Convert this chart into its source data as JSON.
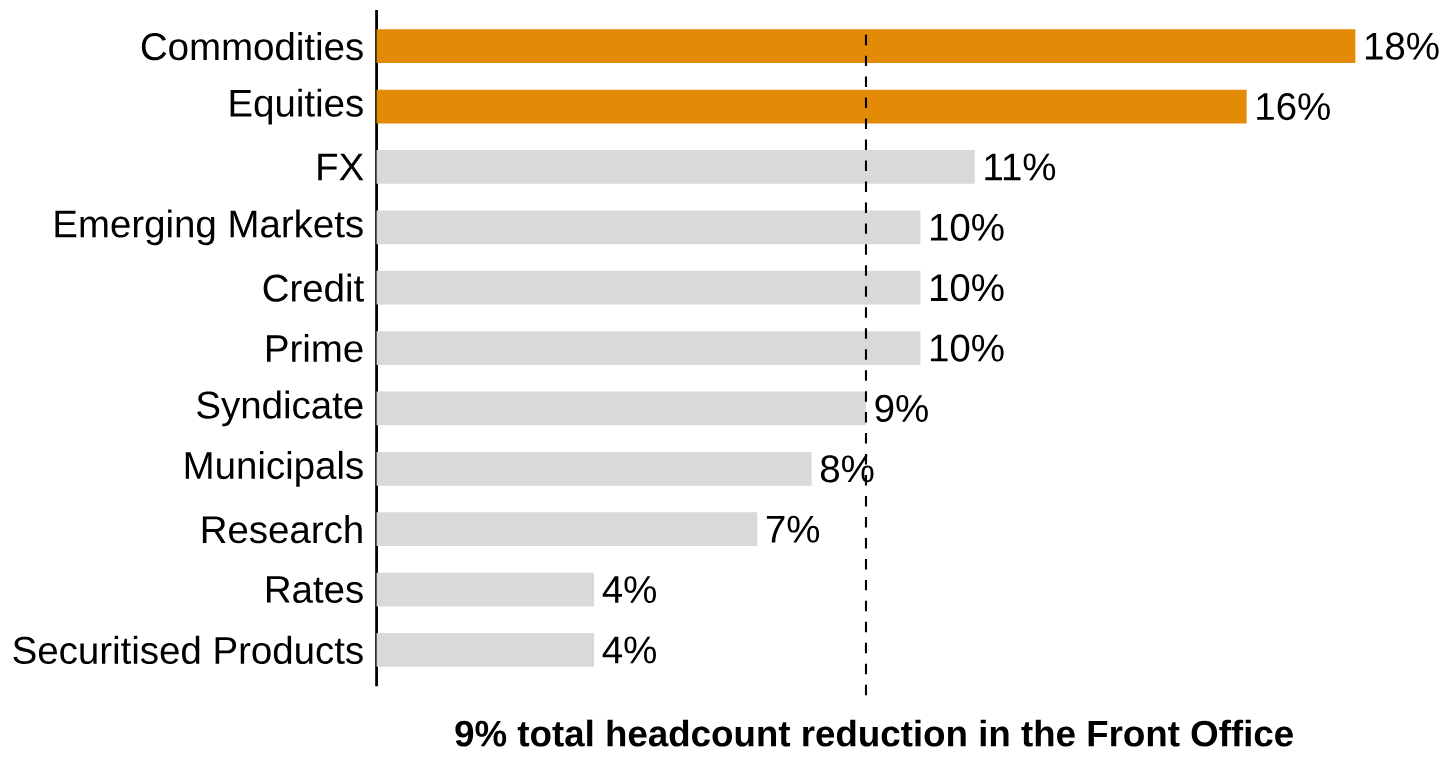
{
  "chart_data": {
    "type": "bar",
    "orientation": "horizontal",
    "categories": [
      "Commodities",
      "Equities",
      "FX",
      "Emerging Markets",
      "Credit",
      "Prime",
      "Syndicate",
      "Municipals",
      "Research",
      "Rates",
      "Securitised Products"
    ],
    "values": [
      18,
      16,
      11,
      10,
      10,
      10,
      9,
      8,
      7,
      4,
      4
    ],
    "value_labels": [
      "18%",
      "16%",
      "11%",
      "10%",
      "10%",
      "10%",
      "9%",
      "8%",
      "7%",
      "4%",
      "4%"
    ],
    "colors": [
      "#e38b06",
      "#e38b06",
      "#d9d9db",
      "#d9d9db",
      "#d9d9db",
      "#d9d9db",
      "#d9d9db",
      "#d9d9db",
      "#d9d9db",
      "#d9d9db",
      "#d9d9db"
    ],
    "ref_lines": [
      {
        "axis": "x",
        "value": 9,
        "label": "9% total headcount reduction in the Front Office",
        "line_style": "dashed",
        "color": "#000000"
      }
    ],
    "grid": false
  }
}
